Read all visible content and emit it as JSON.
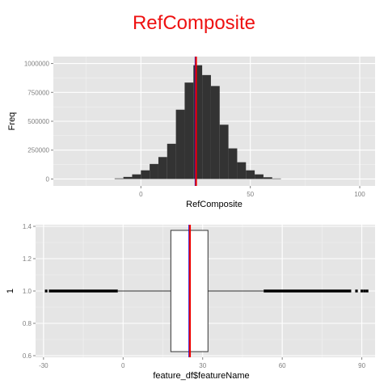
{
  "title": "RefComposite",
  "colors": {
    "title": "#ee1111",
    "panel": "#e5e5e5",
    "grid_major": "#ffffff",
    "grid_minor": "#f2f2f2",
    "bar_fill": "#333333",
    "tick_text": "#808080",
    "mean_line": "#0000ee",
    "median_line": "#ee0000"
  },
  "chart_data": [
    {
      "type": "bar",
      "subtype": "histogram",
      "xlabel": "RefComposite",
      "ylabel": "Freq",
      "xlim": [
        -40,
        107
      ],
      "ylim": [
        -60000,
        1060000
      ],
      "xticks": [
        0,
        50,
        100
      ],
      "yticks": [
        0,
        250000,
        500000,
        750000,
        1000000
      ],
      "grid": true,
      "bin_width": 4,
      "bins": [
        {
          "x0": -12,
          "x1": -8,
          "count": 5000
        },
        {
          "x0": -8,
          "x1": -4,
          "count": 18000
        },
        {
          "x0": -4,
          "x1": 0,
          "count": 40000
        },
        {
          "x0": 0,
          "x1": 4,
          "count": 75000
        },
        {
          "x0": 4,
          "x1": 8,
          "count": 130000
        },
        {
          "x0": 8,
          "x1": 12,
          "count": 190000
        },
        {
          "x0": 12,
          "x1": 16,
          "count": 305000
        },
        {
          "x0": 16,
          "x1": 20,
          "count": 600000
        },
        {
          "x0": 20,
          "x1": 24,
          "count": 835000
        },
        {
          "x0": 24,
          "x1": 28,
          "count": 985000
        },
        {
          "x0": 28,
          "x1": 32,
          "count": 900000
        },
        {
          "x0": 32,
          "x1": 36,
          "count": 805000
        },
        {
          "x0": 36,
          "x1": 40,
          "count": 470000
        },
        {
          "x0": 40,
          "x1": 44,
          "count": 265000
        },
        {
          "x0": 44,
          "x1": 48,
          "count": 145000
        },
        {
          "x0": 48,
          "x1": 52,
          "count": 75000
        },
        {
          "x0": 52,
          "x1": 56,
          "count": 40000
        },
        {
          "x0": 56,
          "x1": 60,
          "count": 15000
        },
        {
          "x0": 60,
          "x1": 64,
          "count": 4000
        }
      ],
      "vlines": [
        {
          "x": 25,
          "color": "#0000ee"
        },
        {
          "x": 25.2,
          "color": "#ee0000"
        }
      ]
    },
    {
      "type": "boxplot",
      "orientation": "horizontal",
      "xlabel": "feature_df$featureName",
      "ylabel": "1",
      "xlim": [
        -33,
        95
      ],
      "ylim": [
        0.59,
        1.41
      ],
      "xticks": [
        -30,
        0,
        30,
        60,
        90
      ],
      "yticks": [
        0.6,
        0.8,
        1.0,
        1.2,
        1.4
      ],
      "grid": true,
      "box": {
        "y": 1.0,
        "q1": 18,
        "median": 25,
        "q3": 32,
        "whisker_low": -2,
        "whisker_high": 53,
        "ymin": 0.625,
        "ymax": 1.375
      },
      "outlier_ranges": [
        [
          -28,
          -2
        ],
        [
          53,
          86
        ]
      ],
      "outlier_points": [
        -29,
        88,
        90,
        91,
        92
      ],
      "vlines": [
        {
          "x": 25,
          "color": "#0000ee"
        },
        {
          "x": 25.2,
          "color": "#ee0000"
        }
      ]
    }
  ]
}
